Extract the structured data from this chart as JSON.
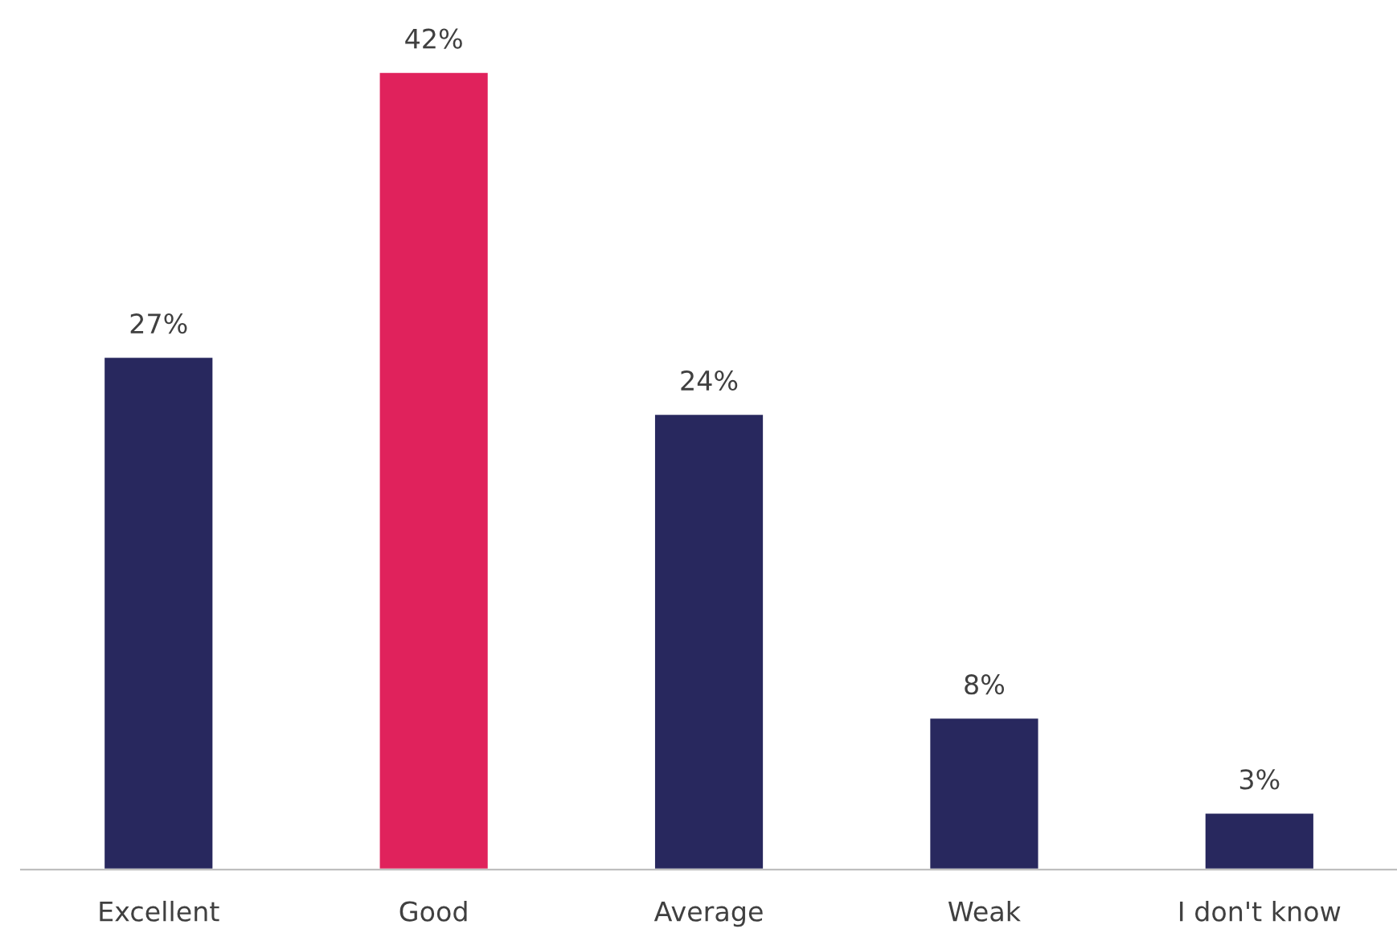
{
  "chart_data": {
    "type": "bar",
    "categories": [
      "Excellent",
      "Good",
      "Average",
      "Weak",
      "I don't know"
    ],
    "values": [
      27,
      42,
      24,
      8,
      3
    ],
    "colors": [
      "#28285e",
      "#e0225c",
      "#28285e",
      "#28285e",
      "#28285e"
    ],
    "value_labels": [
      "27%",
      "42%",
      "24%",
      "8%",
      "3%"
    ],
    "grid": false,
    "legend": false
  }
}
